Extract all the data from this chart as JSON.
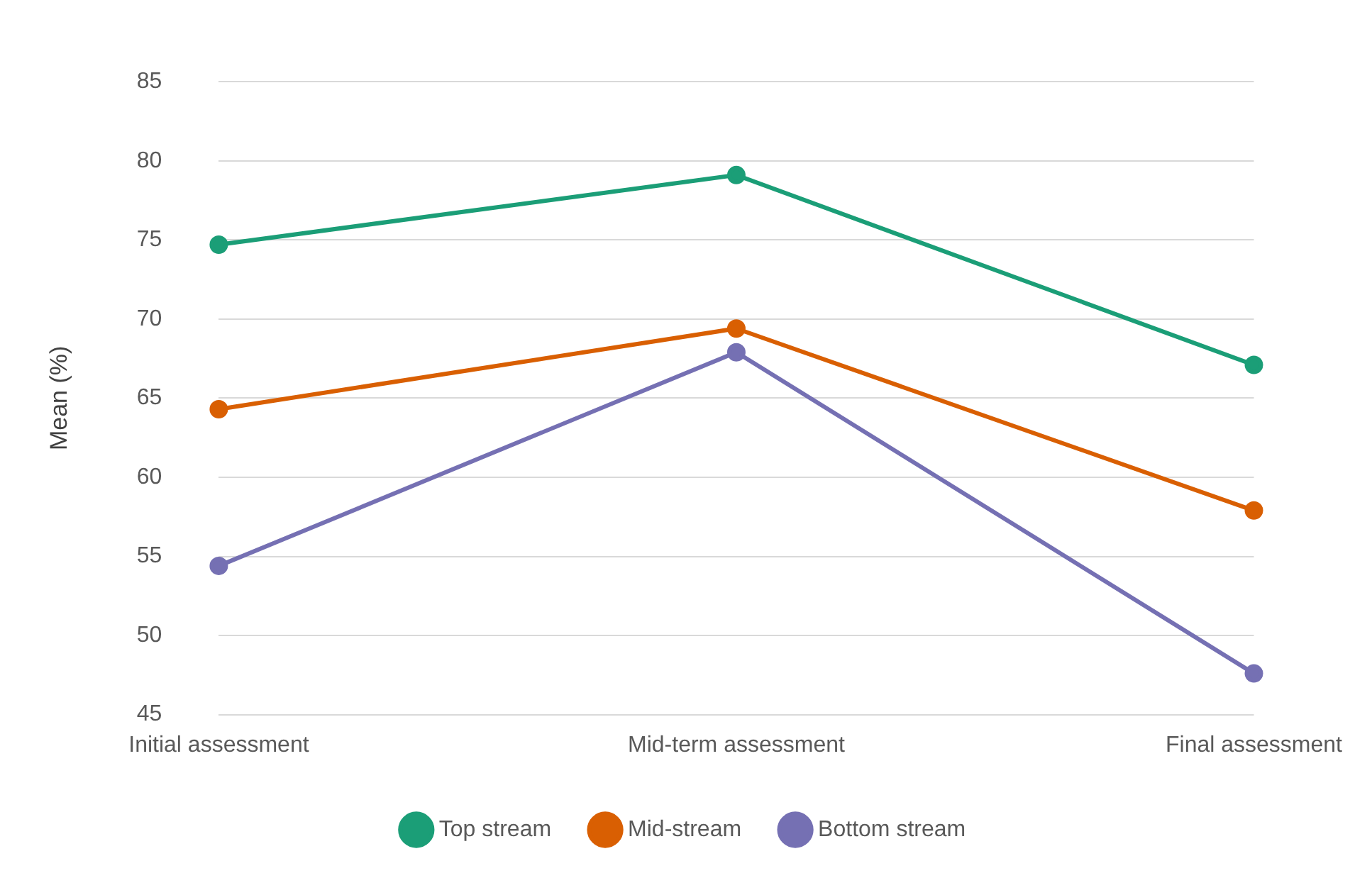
{
  "chart_data": {
    "type": "line",
    "ylabel": "Mean (%)",
    "categories": [
      "Initial assessment",
      "Mid-term assessment",
      "Final assessment"
    ],
    "series": [
      {
        "name": "Top stream",
        "color": "#1b9e77",
        "values": [
          74.7,
          79.1,
          67.1
        ]
      },
      {
        "name": "Mid-stream",
        "color": "#d95f02",
        "values": [
          64.3,
          69.4,
          57.9
        ]
      },
      {
        "name": "Bottom stream",
        "color": "#7570b3",
        "values": [
          54.4,
          67.9,
          47.6
        ]
      }
    ],
    "ylim": [
      45,
      85
    ],
    "yticks": [
      45,
      50,
      55,
      60,
      65,
      70,
      75,
      80,
      85
    ],
    "grid": "y",
    "legend": "bottom",
    "marker": "circle",
    "line_style": "solid"
  }
}
